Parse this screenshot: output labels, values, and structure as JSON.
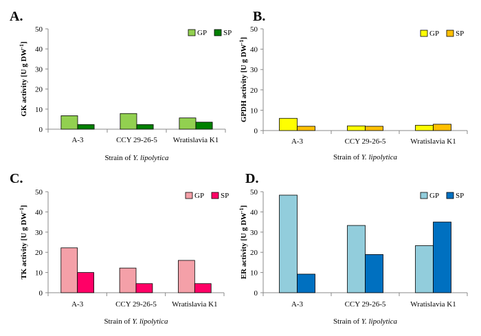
{
  "chart_data": [
    {
      "type": "bar",
      "panel": "A.",
      "categories": [
        "A-3",
        "CCY 29-26-5",
        "Wratislavia K1"
      ],
      "series": [
        {
          "name": "GP",
          "values": [
            6.7,
            7.8,
            5.6
          ],
          "color": "#92d050"
        },
        {
          "name": "SP",
          "values": [
            2.3,
            2.3,
            3.5
          ],
          "color": "#008000"
        }
      ],
      "ylabel_main": "GK activity [U g DW",
      "ylabel_sup": "-1",
      "ylabel_end": "]",
      "xlabel_pre": "Strain of ",
      "xlabel_italic": "Y. lipolytica",
      "ylim": [
        0,
        50
      ],
      "yticks": [
        "0",
        "10",
        "20",
        "30",
        "40",
        "50"
      ],
      "legend": "top-right",
      "grid": false
    },
    {
      "type": "bar",
      "panel": "B.",
      "categories": [
        "A-3",
        "CCY 29-26-5",
        "Wratislavia K1"
      ],
      "series": [
        {
          "name": "GP",
          "values": [
            6.0,
            2.3,
            2.6
          ],
          "color": "#ffff00"
        },
        {
          "name": "SP",
          "values": [
            2.1,
            2.1,
            3.1
          ],
          "color": "#ffc000"
        }
      ],
      "ylabel_main": "GPDH activity [U g DW",
      "ylabel_sup": "-1",
      "ylabel_end": "]",
      "xlabel_pre": "Strain of ",
      "xlabel_italic": "Y. lipolytica",
      "ylim": [
        0,
        50
      ],
      "yticks": [
        "0",
        "10",
        "20",
        "30",
        "40",
        "50"
      ],
      "legend": "top-right",
      "grid": false
    },
    {
      "type": "bar",
      "panel": "C.",
      "categories": [
        "A-3",
        "CCY 29-26-5",
        "Wratislavia K1"
      ],
      "series": [
        {
          "name": "GP",
          "values": [
            22.2,
            12.2,
            16.0
          ],
          "color": "#f4a0a8"
        },
        {
          "name": "SP",
          "values": [
            10.0,
            4.5,
            4.5
          ],
          "color": "#ff0066"
        }
      ],
      "ylabel_main": "TK activity [U g DW",
      "ylabel_sup": "-1",
      "ylabel_end": "]",
      "xlabel_pre": "Strain of ",
      "xlabel_italic": "Y. lipolytica",
      "ylim": [
        0,
        50
      ],
      "yticks": [
        "0",
        "10",
        "20",
        "30",
        "40",
        "50"
      ],
      "legend": "top-right",
      "grid": false
    },
    {
      "type": "bar",
      "panel": "D.",
      "categories": [
        "A-3",
        "CCY 29-26-5",
        "Wratislavia K1"
      ],
      "series": [
        {
          "name": "GP",
          "values": [
            48.3,
            33.3,
            23.3
          ],
          "color": "#92cddc"
        },
        {
          "name": "SP",
          "values": [
            9.2,
            18.9,
            35.0
          ],
          "color": "#0070c0"
        }
      ],
      "ylabel_main": "ER activity [U g DW",
      "ylabel_sup": "-1",
      "ylabel_end": "]",
      "xlabel_pre": "Strain of ",
      "xlabel_italic": "Y. lipolytica",
      "ylim": [
        0,
        50
      ],
      "yticks": [
        "0",
        "10",
        "20",
        "30",
        "40",
        "50"
      ],
      "legend": "top-right",
      "grid": false
    }
  ]
}
